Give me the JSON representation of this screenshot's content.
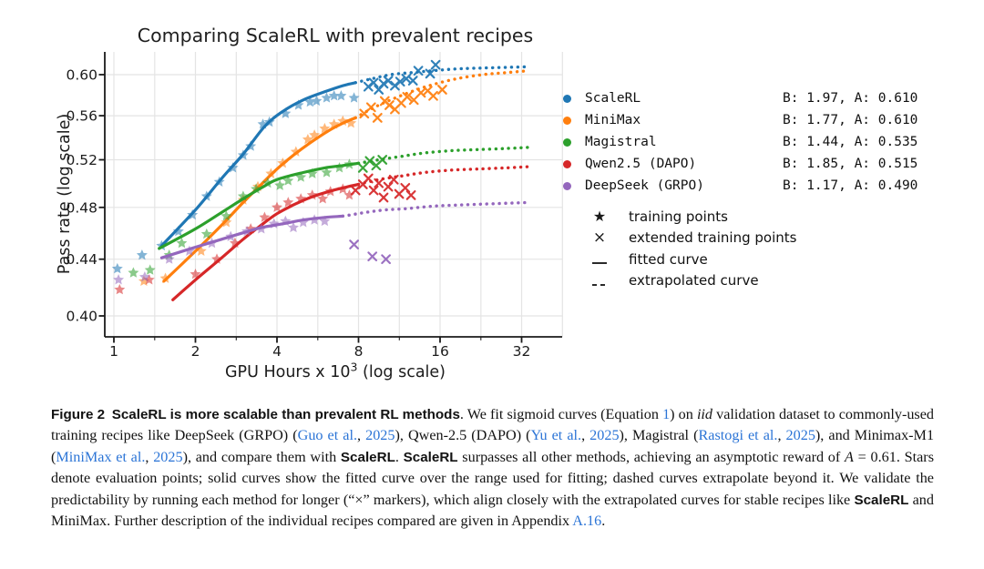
{
  "figure": {
    "title": "Comparing ScaleRL with prevalent recipes",
    "ylabel": "Pass rate (log scale)",
    "xlabel_main": "GPU Hours x 10",
    "xlabel_exp": "3",
    "xlabel_tail": " (log scale)"
  },
  "chart_data": {
    "type": "line",
    "title": "Comparing ScaleRL with prevalent recipes",
    "xlabel": "GPU Hours x 10^3 (log scale)",
    "ylabel": "Pass rate (log scale)",
    "x_scale": "log2",
    "y_scale": "log",
    "x_ticks": [
      1,
      2,
      4,
      8,
      16,
      32
    ],
    "y_ticks": [
      0.4,
      0.44,
      0.48,
      0.52,
      0.56,
      0.6
    ],
    "x_range": [
      0.93,
      45.25
    ],
    "y_range": [
      0.39,
      0.623
    ],
    "grid": "on",
    "legend_position": "right",
    "series": [
      {
        "name": "ScaleRL",
        "color": "#1f77b4",
        "B": 1.97,
        "A": 0.61,
        "params_label": "B: 1.97, A: 0.610",
        "solid": [
          [
            1.5,
            0.45
          ],
          [
            2.0,
            0.478
          ],
          [
            2.5,
            0.504
          ],
          [
            3.0,
            0.525
          ],
          [
            3.6,
            0.55
          ],
          [
            4.2,
            0.564
          ],
          [
            5.0,
            0.575
          ],
          [
            6.0,
            0.583
          ],
          [
            7.0,
            0.589
          ],
          [
            7.8,
            0.592
          ]
        ],
        "dotted": [
          [
            7.8,
            0.592
          ],
          [
            9.0,
            0.596
          ],
          [
            10.5,
            0.6
          ],
          [
            12.5,
            0.602
          ],
          [
            15.0,
            0.604
          ],
          [
            19.0,
            0.606
          ],
          [
            25.0,
            0.607
          ],
          [
            34.0,
            0.608
          ]
        ],
        "stars": [
          [
            1.03,
            0.433
          ],
          [
            1.27,
            0.443
          ],
          [
            1.5,
            0.45
          ],
          [
            1.73,
            0.461
          ],
          [
            1.95,
            0.474
          ],
          [
            2.2,
            0.489
          ],
          [
            2.45,
            0.501
          ],
          [
            2.75,
            0.513
          ],
          [
            3.0,
            0.524
          ],
          [
            3.2,
            0.532
          ],
          [
            3.55,
            0.552
          ],
          [
            3.75,
            0.554
          ],
          [
            4.3,
            0.562
          ],
          [
            4.8,
            0.57
          ],
          [
            5.3,
            0.573
          ],
          [
            5.6,
            0.574
          ],
          [
            6.1,
            0.577
          ],
          [
            6.5,
            0.579
          ],
          [
            6.9,
            0.579
          ],
          [
            7.7,
            0.577
          ]
        ],
        "crosses": [
          [
            8.7,
            0.588
          ],
          [
            9.1,
            0.592
          ],
          [
            9.5,
            0.585
          ],
          [
            9.9,
            0.591
          ],
          [
            10.3,
            0.594
          ],
          [
            10.9,
            0.589
          ],
          [
            11.4,
            0.593
          ],
          [
            12.0,
            0.596
          ],
          [
            12.7,
            0.594
          ],
          [
            13.3,
            0.604
          ],
          [
            14.7,
            0.601
          ],
          [
            15.4,
            0.61
          ]
        ]
      },
      {
        "name": "MiniMax",
        "color": "#ff7f0e",
        "B": 1.77,
        "A": 0.61,
        "params_label": "B: 1.77, A: 0.610",
        "solid": [
          [
            1.53,
            0.424
          ],
          [
            2.0,
            0.446
          ],
          [
            2.5,
            0.466
          ],
          [
            3.0,
            0.484
          ],
          [
            3.5,
            0.499
          ],
          [
            4.0,
            0.512
          ],
          [
            4.6,
            0.524
          ],
          [
            5.3,
            0.535
          ],
          [
            6.2,
            0.546
          ],
          [
            7.0,
            0.553
          ],
          [
            7.8,
            0.558
          ]
        ],
        "dotted": [
          [
            7.8,
            0.558
          ],
          [
            9.0,
            0.567
          ],
          [
            10.5,
            0.575
          ],
          [
            12.5,
            0.583
          ],
          [
            15.0,
            0.59
          ],
          [
            18.5,
            0.596
          ],
          [
            23.0,
            0.6
          ],
          [
            28.0,
            0.602
          ],
          [
            34.0,
            0.604
          ]
        ],
        "stars": [
          [
            1.29,
            0.424
          ],
          [
            1.55,
            0.426
          ],
          [
            2.1,
            0.446
          ],
          [
            2.6,
            0.468
          ],
          [
            3.0,
            0.486
          ],
          [
            3.4,
            0.497
          ],
          [
            3.8,
            0.508
          ],
          [
            4.2,
            0.517
          ],
          [
            4.7,
            0.527
          ],
          [
            5.2,
            0.538
          ],
          [
            5.5,
            0.542
          ],
          [
            6.0,
            0.548
          ],
          [
            6.5,
            0.552
          ],
          [
            7.0,
            0.555
          ],
          [
            7.5,
            0.553
          ]
        ],
        "crosses": [
          [
            8.4,
            0.562
          ],
          [
            8.9,
            0.568
          ],
          [
            9.4,
            0.558
          ],
          [
            10.0,
            0.574
          ],
          [
            10.4,
            0.57
          ],
          [
            10.9,
            0.566
          ],
          [
            11.5,
            0.572
          ],
          [
            12.1,
            0.578
          ],
          [
            12.8,
            0.575
          ],
          [
            13.6,
            0.582
          ],
          [
            14.4,
            0.584
          ],
          [
            15.1,
            0.579
          ],
          [
            16.3,
            0.585
          ]
        ]
      },
      {
        "name": "Magistral",
        "color": "#2ca02c",
        "B": 1.44,
        "A": 0.535,
        "params_label": "B: 1.44, A: 0.535",
        "solid": [
          [
            1.47,
            0.448
          ],
          [
            2.0,
            0.463
          ],
          [
            2.5,
            0.476
          ],
          [
            3.0,
            0.487
          ],
          [
            3.5,
            0.496
          ],
          [
            4.0,
            0.503
          ],
          [
            5.0,
            0.509
          ],
          [
            6.0,
            0.513
          ],
          [
            7.0,
            0.515
          ],
          [
            8.0,
            0.517
          ]
        ],
        "dotted": [
          [
            8.0,
            0.517
          ],
          [
            9.5,
            0.52
          ],
          [
            11.5,
            0.523
          ],
          [
            14.0,
            0.526
          ],
          [
            17.5,
            0.528
          ],
          [
            22.0,
            0.529
          ],
          [
            28.0,
            0.53
          ],
          [
            34.0,
            0.531
          ]
        ],
        "stars": [
          [
            1.18,
            0.43
          ],
          [
            1.36,
            0.432
          ],
          [
            1.6,
            0.443
          ],
          [
            1.78,
            0.452
          ],
          [
            2.2,
            0.459
          ],
          [
            2.6,
            0.473
          ],
          [
            3.0,
            0.489
          ],
          [
            3.35,
            0.495
          ],
          [
            3.7,
            0.5
          ],
          [
            4.1,
            0.498
          ],
          [
            4.4,
            0.502
          ],
          [
            4.9,
            0.505
          ],
          [
            5.4,
            0.508
          ],
          [
            6.1,
            0.509
          ],
          [
            6.8,
            0.513
          ],
          [
            7.4,
            0.516
          ]
        ],
        "crosses": [
          [
            8.3,
            0.513
          ],
          [
            8.8,
            0.519
          ],
          [
            9.3,
            0.515
          ],
          [
            9.8,
            0.52
          ]
        ]
      },
      {
        "name": "Qwen2.5 (DAPO)",
        "color": "#d62728",
        "B": 1.85,
        "A": 0.515,
        "params_label": "B: 1.85, A: 0.515",
        "solid": [
          [
            1.65,
            0.411
          ],
          [
            2.0,
            0.425
          ],
          [
            2.5,
            0.441
          ],
          [
            3.0,
            0.455
          ],
          [
            3.5,
            0.466
          ],
          [
            4.0,
            0.475
          ],
          [
            4.6,
            0.482
          ],
          [
            5.3,
            0.488
          ],
          [
            6.2,
            0.493
          ],
          [
            7.0,
            0.496
          ],
          [
            8.0,
            0.499
          ]
        ],
        "dotted": [
          [
            8.0,
            0.499
          ],
          [
            9.5,
            0.503
          ],
          [
            11.5,
            0.506
          ],
          [
            14.0,
            0.509
          ],
          [
            17.5,
            0.511
          ],
          [
            22.0,
            0.512
          ],
          [
            28.0,
            0.513
          ],
          [
            34.0,
            0.514
          ]
        ],
        "stars": [
          [
            1.05,
            0.418
          ],
          [
            1.35,
            0.425
          ],
          [
            2.0,
            0.429
          ],
          [
            2.4,
            0.44
          ],
          [
            2.8,
            0.452
          ],
          [
            3.2,
            0.463
          ],
          [
            3.6,
            0.472
          ],
          [
            4.0,
            0.48
          ],
          [
            4.4,
            0.484
          ],
          [
            4.9,
            0.487
          ],
          [
            5.4,
            0.49
          ],
          [
            5.9,
            0.487
          ],
          [
            6.3,
            0.493
          ],
          [
            7.0,
            0.495
          ],
          [
            7.4,
            0.49
          ]
        ],
        "crosses": [
          [
            7.8,
            0.494
          ],
          [
            8.3,
            0.499
          ],
          [
            8.7,
            0.504
          ],
          [
            9.1,
            0.494
          ],
          [
            9.5,
            0.5
          ],
          [
            9.9,
            0.488
          ],
          [
            10.3,
            0.497
          ],
          [
            10.8,
            0.503
          ],
          [
            11.3,
            0.491
          ],
          [
            11.9,
            0.496
          ],
          [
            12.5,
            0.49
          ]
        ]
      },
      {
        "name": "DeepSeek (GRPO)",
        "color": "#9467bd",
        "B": 1.17,
        "A": 0.49,
        "params_label": "B: 1.17, A: 0.490",
        "solid": [
          [
            1.5,
            0.441
          ],
          [
            2.0,
            0.449
          ],
          [
            2.5,
            0.455
          ],
          [
            3.0,
            0.46
          ],
          [
            3.5,
            0.464
          ],
          [
            4.2,
            0.467
          ],
          [
            5.0,
            0.47
          ],
          [
            6.0,
            0.472
          ],
          [
            7.0,
            0.473
          ]
        ],
        "dotted": [
          [
            7.0,
            0.473
          ],
          [
            8.5,
            0.476
          ],
          [
            10.0,
            0.478
          ],
          [
            12.0,
            0.479
          ],
          [
            15.0,
            0.481
          ],
          [
            19.0,
            0.482
          ],
          [
            25.0,
            0.483
          ],
          [
            34.0,
            0.484
          ]
        ],
        "stars": [
          [
            1.04,
            0.425
          ],
          [
            1.3,
            0.427
          ],
          [
            1.6,
            0.44
          ],
          [
            1.9,
            0.446
          ],
          [
            2.3,
            0.452
          ],
          [
            2.7,
            0.457
          ],
          [
            3.1,
            0.461
          ],
          [
            3.5,
            0.463
          ],
          [
            3.9,
            0.467
          ],
          [
            4.3,
            0.469
          ],
          [
            4.6,
            0.464
          ],
          [
            5.0,
            0.468
          ],
          [
            5.5,
            0.47
          ],
          [
            6.0,
            0.469
          ]
        ],
        "crosses": [
          [
            7.7,
            0.451
          ],
          [
            9.0,
            0.442
          ],
          [
            10.1,
            0.44
          ]
        ]
      }
    ],
    "marker_legend": [
      {
        "glyph": "star",
        "symbol": "★",
        "label": "training points"
      },
      {
        "glyph": "cross",
        "symbol": "×",
        "label": "extended training points"
      },
      {
        "glyph": "solid",
        "symbol": "—",
        "label": "fitted curve"
      },
      {
        "glyph": "dashed",
        "symbol": "--",
        "label": "extrapolated curve"
      }
    ]
  },
  "caption": {
    "segments": [
      [
        "bs",
        "Figure 2 "
      ],
      [
        "bs",
        "ScaleRL is more scalable than prevalent RL methods"
      ],
      [
        "rm",
        ". We fit sigmoid curves (Equation "
      ],
      [
        "ln",
        "1"
      ],
      [
        "rm",
        ") on "
      ],
      [
        "it",
        "iid"
      ],
      [
        "rm",
        " validation dataset to commonly-used training recipes like DeepSeek (GRPO) ("
      ],
      [
        "ln",
        "Guo et al."
      ],
      [
        "rm",
        ", "
      ],
      [
        "ln",
        "2025"
      ],
      [
        "rm",
        "), Qwen-2.5 (DAPO) ("
      ],
      [
        "ln",
        "Yu et al."
      ],
      [
        "rm",
        ", "
      ],
      [
        "ln",
        "2025"
      ],
      [
        "rm",
        "), Magistral ("
      ],
      [
        "ln",
        "Rastogi et al."
      ],
      [
        "rm",
        ", "
      ],
      [
        "ln",
        "2025"
      ],
      [
        "rm",
        "), and Minimax-M1 ("
      ],
      [
        "ln",
        "MiniMax et al."
      ],
      [
        "rm",
        ", "
      ],
      [
        "ln",
        "2025"
      ],
      [
        "rm",
        "), and compare them with "
      ],
      [
        "bs",
        "ScaleRL"
      ],
      [
        "rm",
        ". "
      ],
      [
        "bs",
        "ScaleRL"
      ],
      [
        "rm",
        " surpasses all other methods, achieving an asymptotic reward of "
      ],
      [
        "it",
        "A"
      ],
      [
        "rm",
        " = 0.61. Stars denote evaluation points; solid curves show the fitted curve over the range used for fitting; dashed curves extrapolate beyond it. We validate the predictability by running each method for longer (“×” markers), which align closely with the extrapolated curves for stable recipes like "
      ],
      [
        "bs",
        "ScaleRL"
      ],
      [
        "rm",
        " and MiniMax. Further description of the individual recipes compared are given in Appendix "
      ],
      [
        "ln",
        "A.16"
      ],
      [
        "rm",
        "."
      ]
    ]
  }
}
